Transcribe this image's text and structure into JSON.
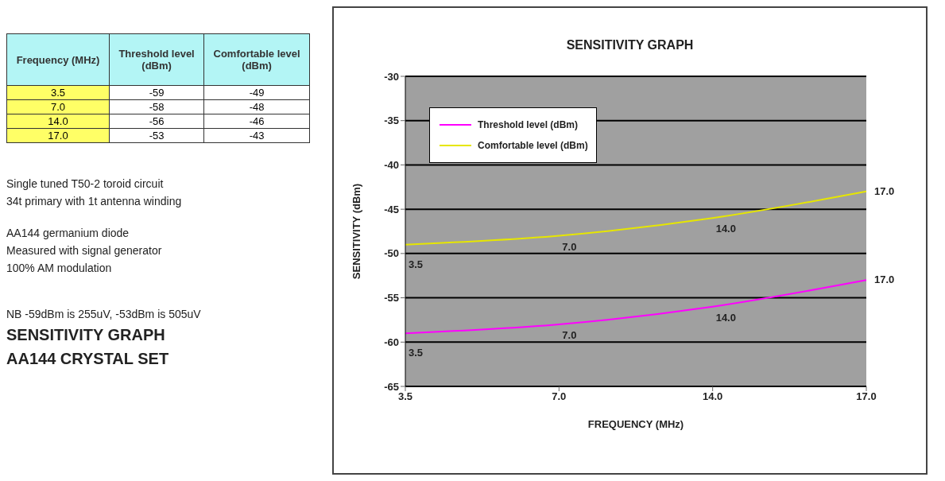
{
  "chart_data": [
    {
      "type": "other",
      "xlabel": "Frequency (MHz)",
      "categories": [
        "3.5",
        "7.0",
        "14.0",
        "17.0"
      ],
      "data_labels": true,
      "series": [
        {
          "name": "Threshold level (dBm)",
          "values": [
            -59,
            -58,
            -56,
            -53
          ]
        },
        {
          "name": "Comfortable level (dBm)",
          "values": [
            -49,
            -48,
            -46,
            -43
          ]
        }
      ],
      "annotations": [
        "Single tuned T50-2 toroid circuit",
        "34t primary with 1t antenna winding",
        "AA144 germanium diode",
        "Measured with signal generator",
        "100% AM modulation",
        "NB  -59dBm is 255uV, -53dBm is 505uV",
        "SENSITIVITY GRAPH",
        "AA144 CRYSTAL SET"
      ]
    },
    {
      "type": "line",
      "title": "SENSITIVITY GRAPH",
      "xlabel": "FREQUENCY (MHz)",
      "ylabel": "SENSITIVITY (dBm)",
      "categories": [
        "3.5",
        "7.0",
        "14.0",
        "17.0"
      ],
      "series": [
        {
          "name": "Threshold level (dBm)",
          "color": "#ff00ff",
          "values": [
            -59,
            -58,
            -56,
            -53
          ]
        },
        {
          "name": "Comfortable level (dBm)",
          "color": "#e6e600",
          "values": [
            -49,
            -48,
            -46,
            -43
          ]
        }
      ],
      "ylim": [
        -65,
        -30
      ],
      "yticks": [
        -65,
        -60,
        -55,
        -50,
        -45,
        -40,
        -35,
        -30
      ],
      "grid": "y",
      "legend": "top left",
      "marker": "none",
      "line_style": "solid",
      "annotations": [
        {
          "text": "3.5",
          "x": "3.5",
          "y": -59
        },
        {
          "text": "7.0",
          "x": "7.0",
          "y": -58
        },
        {
          "text": "14.0",
          "x": "14.0",
          "y": -56
        },
        {
          "text": "17.0",
          "x": "17.0",
          "y": -53
        },
        {
          "text": "3.5",
          "x": "3.5",
          "y": -49
        },
        {
          "text": "7.0",
          "x": "7.0",
          "y": -48
        },
        {
          "text": "14.0",
          "x": "14.0",
          "y": -46
        },
        {
          "text": "17.0",
          "x": "17.0",
          "y": -43
        }
      ]
    }
  ]
}
